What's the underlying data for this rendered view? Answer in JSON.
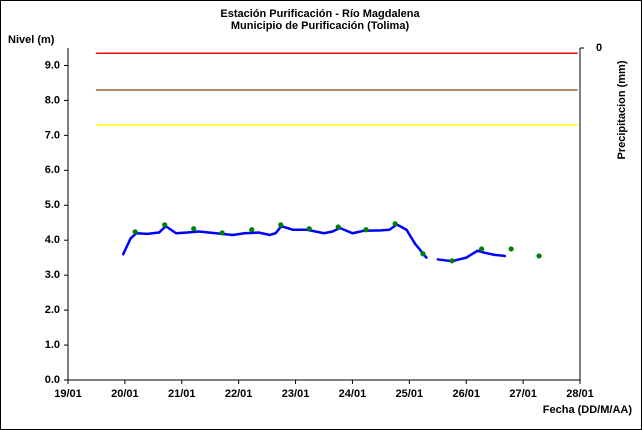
{
  "chart_data": {
    "type": "line",
    "title": "Estación Purificación - Río Magdalena",
    "subtitle": "Municipio de Purificación (Tolima)",
    "y_label": "Nivel (m)",
    "x_label": "Fecha (DD/M/AA)",
    "y2_label": "Precipitacion (mm)",
    "xlim": [
      19,
      28
    ],
    "xticks": [
      {
        "value": 19,
        "label": "19/01"
      },
      {
        "value": 20,
        "label": "20/01"
      },
      {
        "value": 21,
        "label": "21/01"
      },
      {
        "value": 22,
        "label": "22/01"
      },
      {
        "value": 23,
        "label": "23/01"
      },
      {
        "value": 24,
        "label": "24/01"
      },
      {
        "value": 25,
        "label": "25/01"
      },
      {
        "value": 26,
        "label": "26/01"
      },
      {
        "value": 27,
        "label": "27/01"
      },
      {
        "value": 28,
        "label": "28/01"
      }
    ],
    "ylim": [
      0,
      9.5
    ],
    "yticks": [
      {
        "value": 0,
        "label": "0.0"
      },
      {
        "value": 1,
        "label": "1.0"
      },
      {
        "value": 2,
        "label": "2.0"
      },
      {
        "value": 3,
        "label": "3.0"
      },
      {
        "value": 4,
        "label": "4.0"
      },
      {
        "value": 5,
        "label": "5.0"
      },
      {
        "value": 6,
        "label": "6.0"
      },
      {
        "value": 7,
        "label": "7.0"
      },
      {
        "value": 8,
        "label": "8.0"
      },
      {
        "value": 9,
        "label": "9.0"
      }
    ],
    "y2lim": [
      0,
      10
    ],
    "y2ticks": [
      0
    ],
    "y2_inverted": true,
    "series": [
      {
        "color": "#ff0000",
        "style": "line",
        "width": 1.5,
        "x": [
          19.5,
          27.95
        ],
        "values": [
          9.35,
          9.35
        ]
      },
      {
        "color": "#996633",
        "style": "line",
        "width": 1.5,
        "x": [
          19.5,
          27.95
        ],
        "values": [
          8.3,
          8.3
        ]
      },
      {
        "color": "#ffff00",
        "style": "line",
        "width": 1.5,
        "x": [
          19.5,
          27.95
        ],
        "values": [
          7.3,
          7.3
        ]
      },
      {
        "color": "#0000ff",
        "style": "line",
        "width": 2.5,
        "x": [
          19.97,
          20.1,
          20.2,
          20.4,
          20.6,
          20.72,
          20.9,
          21.1,
          21.3,
          21.6,
          21.9,
          22.1,
          22.35,
          22.55,
          22.65,
          22.75,
          22.95,
          23.2,
          23.5,
          23.65,
          23.78,
          24.0,
          24.2,
          24.5,
          24.65,
          24.78,
          24.95,
          25.1,
          25.25,
          25.3,
          25.37,
          25.5,
          25.75,
          26.0,
          26.2,
          26.3,
          26.5,
          26.68
        ],
        "values": [
          3.6,
          4.05,
          4.2,
          4.18,
          4.22,
          4.4,
          4.2,
          4.22,
          4.25,
          4.2,
          4.15,
          4.2,
          4.22,
          4.15,
          4.2,
          4.4,
          4.3,
          4.3,
          4.2,
          4.25,
          4.35,
          4.2,
          4.27,
          4.28,
          4.3,
          4.45,
          4.3,
          3.9,
          3.6,
          3.5,
          null,
          3.45,
          3.4,
          3.5,
          3.7,
          3.65,
          3.58,
          3.55
        ]
      },
      {
        "color": "#008000",
        "style": "markers",
        "x": [
          20.18,
          20.7,
          21.21,
          21.71,
          22.23,
          22.74,
          23.24,
          23.75,
          24.24,
          24.75,
          25.24,
          25.75,
          26.27,
          26.79,
          27.28
        ],
        "values": [
          4.24,
          4.44,
          4.33,
          4.21,
          4.3,
          4.44,
          4.33,
          4.38,
          4.3,
          4.47,
          3.61,
          3.41,
          3.75,
          3.75,
          3.55
        ]
      }
    ]
  }
}
